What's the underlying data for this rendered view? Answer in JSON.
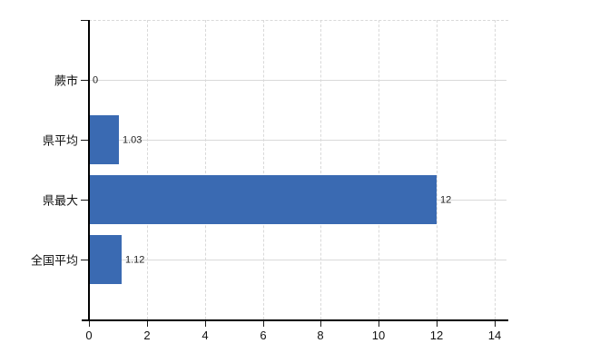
{
  "chart_data": {
    "type": "bar",
    "orientation": "horizontal",
    "title": "",
    "xlabel": "",
    "ylabel": "",
    "categories": [
      "蕨市",
      "県平均",
      "県最大",
      "全国平均"
    ],
    "values": [
      0,
      1.03,
      12,
      1.12
    ],
    "value_labels": [
      "0",
      "1.03",
      "12",
      "1.12"
    ],
    "x_ticks": [
      "0",
      "2",
      "4",
      "6",
      "8",
      "10",
      "12",
      "14"
    ],
    "x_tick_values": [
      0,
      2,
      4,
      6,
      8,
      10,
      12,
      14
    ],
    "xlim": [
      0,
      14
    ],
    "grid": true,
    "legend": false,
    "colors": {
      "bar": "#3a6ab2",
      "grid": "#d9d9d9",
      "axis": "#000000",
      "value_label": "#222222",
      "tick_label": "#111111",
      "background": "#ffffff"
    }
  }
}
